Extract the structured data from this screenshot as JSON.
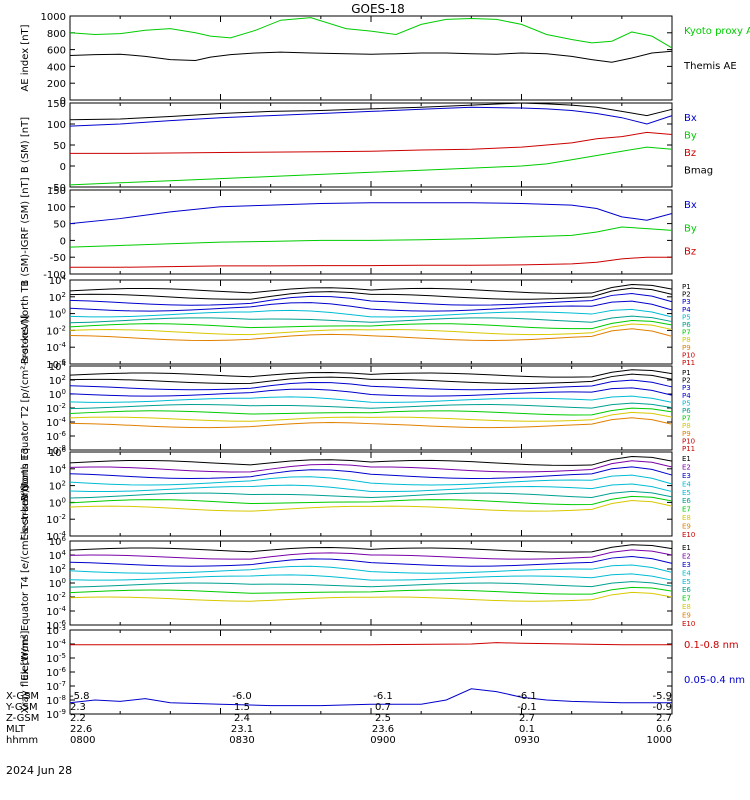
{
  "title": "GOES-18",
  "date": "2024 Jun 28",
  "colors": {
    "black": "#000000",
    "green": "#00cc00",
    "blue": "#0000cc",
    "red": "#cc0000",
    "purple": "#7a00a8",
    "cyan": "#00bcd4",
    "teal": "#00a090",
    "orange": "#e08000",
    "yellow": "#d8c800"
  },
  "footer": {
    "rows": [
      {
        "label": "X-GSM",
        "values": [
          "-5.8",
          "-6.0",
          "-6.1",
          "-6.1",
          "-5.9"
        ]
      },
      {
        "label": "Y-GSM",
        "values": [
          "2.3",
          "1.5",
          "0.7",
          "-0.1",
          "-0.9"
        ]
      },
      {
        "label": "Z-GSM",
        "values": [
          "2.2",
          "2.4",
          "2.5",
          "2.7",
          "2.7"
        ]
      },
      {
        "label": "MLT",
        "values": [
          "22.6",
          "23.1",
          "23.6",
          "0.1",
          "0.6"
        ]
      },
      {
        "label": "hhmm",
        "values": [
          "0800",
          "0830",
          "0900",
          "0930",
          "1000"
        ]
      }
    ]
  },
  "chart_data": [
    {
      "type": "line",
      "ylabel": "AE index [nT]",
      "ylim": [
        0,
        1000
      ],
      "yticks": [
        "0",
        "200",
        "400",
        "600",
        "800",
        "1000"
      ],
      "series": [
        {
          "name": "Kyoto proxy AE",
          "color": "green",
          "x": [
            0,
            5,
            10,
            15,
            20,
            25,
            28,
            32,
            37,
            42,
            48,
            55,
            60,
            65,
            70,
            75,
            80,
            85,
            90,
            95,
            100,
            104,
            108,
            112,
            116,
            120
          ],
          "y": [
            800,
            780,
            790,
            830,
            850,
            800,
            760,
            740,
            830,
            950,
            980,
            850,
            820,
            780,
            900,
            960,
            970,
            960,
            900,
            780,
            720,
            680,
            700,
            810,
            760,
            620
          ]
        },
        {
          "name": "Themis AE",
          "color": "black",
          "x": [
            0,
            5,
            10,
            15,
            20,
            25,
            28,
            32,
            37,
            42,
            48,
            55,
            60,
            65,
            70,
            75,
            80,
            85,
            90,
            95,
            100,
            104,
            108,
            112,
            116,
            120
          ],
          "y": [
            530,
            540,
            545,
            520,
            480,
            470,
            510,
            540,
            560,
            570,
            560,
            550,
            545,
            550,
            560,
            560,
            550,
            545,
            560,
            550,
            520,
            480,
            450,
            500,
            560,
            580
          ]
        }
      ]
    },
    {
      "type": "line",
      "ylabel": "B (SM) [nT]",
      "ylim": [
        -50,
        150
      ],
      "yticks": [
        "-50",
        "0",
        "50",
        "100",
        "150"
      ],
      "series": [
        {
          "name": "Bx",
          "color": "blue",
          "x": [
            0,
            10,
            20,
            30,
            40,
            50,
            60,
            70,
            80,
            90,
            95,
            100,
            105,
            110,
            115,
            120
          ],
          "y": [
            95,
            100,
            108,
            115,
            120,
            125,
            130,
            135,
            140,
            138,
            136,
            132,
            125,
            115,
            100,
            120
          ]
        },
        {
          "name": "By",
          "color": "green",
          "x": [
            0,
            10,
            20,
            30,
            40,
            50,
            60,
            70,
            80,
            90,
            95,
            100,
            105,
            110,
            115,
            120
          ],
          "y": [
            -45,
            -40,
            -35,
            -30,
            -25,
            -20,
            -15,
            -10,
            -5,
            0,
            5,
            15,
            25,
            35,
            45,
            40
          ]
        },
        {
          "name": "Bz",
          "color": "red",
          "x": [
            0,
            10,
            20,
            30,
            40,
            50,
            60,
            70,
            80,
            90,
            95,
            100,
            105,
            110,
            115,
            120
          ],
          "y": [
            30,
            30,
            31,
            32,
            33,
            34,
            35,
            38,
            40,
            45,
            50,
            55,
            65,
            70,
            80,
            75
          ]
        },
        {
          "name": "Bmag",
          "color": "black",
          "x": [
            0,
            10,
            20,
            30,
            40,
            50,
            60,
            70,
            80,
            90,
            95,
            100,
            105,
            110,
            115,
            120
          ],
          "y": [
            110,
            112,
            118,
            125,
            130,
            132,
            136,
            140,
            145,
            150,
            148,
            145,
            140,
            130,
            120,
            135
          ]
        }
      ]
    },
    {
      "type": "line",
      "ylabel": "B (SM)-IGRF (SM) [nT]",
      "ylim": [
        -100,
        150
      ],
      "yticks": [
        "-100",
        "-50",
        "0",
        "50",
        "100",
        "150"
      ],
      "series": [
        {
          "name": "Bx",
          "color": "blue",
          "x": [
            0,
            10,
            20,
            30,
            40,
            50,
            60,
            70,
            80,
            90,
            100,
            105,
            110,
            115,
            120
          ],
          "y": [
            50,
            65,
            85,
            100,
            105,
            110,
            112,
            112,
            112,
            110,
            105,
            95,
            70,
            60,
            80
          ]
        },
        {
          "name": "By",
          "color": "green",
          "x": [
            0,
            10,
            20,
            30,
            40,
            50,
            60,
            70,
            80,
            90,
            100,
            105,
            110,
            115,
            120
          ],
          "y": [
            -20,
            -15,
            -10,
            -5,
            -3,
            0,
            0,
            2,
            5,
            10,
            15,
            25,
            40,
            35,
            30
          ]
        },
        {
          "name": "Bz",
          "color": "red",
          "x": [
            0,
            10,
            20,
            30,
            40,
            50,
            60,
            70,
            80,
            90,
            100,
            105,
            110,
            115,
            120
          ],
          "y": [
            -80,
            -80,
            -78,
            -76,
            -76,
            -75,
            -75,
            -74,
            -74,
            -73,
            -70,
            -65,
            -55,
            -50,
            -50
          ]
        }
      ]
    },
    {
      "type": "line",
      "ylabel": "Protons North T1",
      "ylog": true,
      "ylim": [
        -6,
        4
      ],
      "yticks": [
        "10^-6",
        "10^-4",
        "10^-2",
        "10^0",
        "10^2",
        "10^4"
      ],
      "legend": [
        "P1",
        "P2",
        "P3",
        "P4",
        "P5",
        "P6",
        "P7",
        "P8",
        "P9",
        "P10",
        "P11"
      ]
    },
    {
      "type": "line",
      "ylabel": "Protons Equator T2 [p/(cm²-s-sr-keV)]",
      "ylog": true,
      "ylim": [
        -8,
        4
      ],
      "yticks": [
        "10^-8",
        "10^-6",
        "10^-4",
        "10^-2",
        "10^0",
        "10^2",
        "10^4"
      ],
      "legend": [
        "P1",
        "P2",
        "P3",
        "P4",
        "P5",
        "P6",
        "P7",
        "P8",
        "P9",
        "P10",
        "P11"
      ]
    },
    {
      "type": "line",
      "ylabel": "Electrons North T3",
      "ylog": true,
      "ylim": [
        -4,
        6
      ],
      "yticks": [
        "10^-4",
        "10^-2",
        "10^0",
        "10^2",
        "10^4",
        "10^6"
      ],
      "legend": [
        "E1",
        "E2",
        "E3",
        "E4",
        "E5",
        "E6",
        "E7",
        "E8",
        "E9",
        "E10"
      ]
    },
    {
      "type": "line",
      "ylabel": "Electrons Equator T4 [e/(cm²-s-sr-keV)]",
      "ylog": true,
      "ylim": [
        -6,
        6
      ],
      "yticks": [
        "10^-6",
        "10^-4",
        "10^-2",
        "10^0",
        "10^2",
        "10^4",
        "10^6"
      ],
      "legend": [
        "E1",
        "E2",
        "E3",
        "E4",
        "E5",
        "E6",
        "E7",
        "E8",
        "E9",
        "E10"
      ]
    },
    {
      "type": "line",
      "ylabel": "Xray flux [W/m²]",
      "ylog": true,
      "ylim": [
        -9,
        -3
      ],
      "yticks": [
        "10^-9",
        "10^-8",
        "10^-7",
        "10^-6",
        "10^-5",
        "10^-4",
        "10^-3"
      ],
      "series": [
        {
          "name": "0.1-0.8 nm",
          "color": "red",
          "x": [
            0,
            20,
            40,
            60,
            80,
            85,
            90,
            100,
            110,
            120
          ],
          "y": [
            -4.05,
            -4.05,
            -4.05,
            -4.05,
            -4.0,
            -3.9,
            -3.95,
            -4.0,
            -4.05,
            -4.05
          ]
        },
        {
          "name": "0.05-0.4 nm",
          "color": "blue",
          "x": [
            0,
            5,
            10,
            15,
            20,
            30,
            40,
            50,
            60,
            70,
            75,
            80,
            85,
            90,
            95,
            100,
            110,
            120
          ],
          "y": [
            -8.2,
            -8.0,
            -8.1,
            -7.9,
            -8.2,
            -8.3,
            -8.4,
            -8.4,
            -8.3,
            -8.3,
            -8.0,
            -7.2,
            -7.4,
            -7.8,
            -8.0,
            -8.1,
            -8.2,
            -8.2
          ]
        }
      ]
    }
  ]
}
